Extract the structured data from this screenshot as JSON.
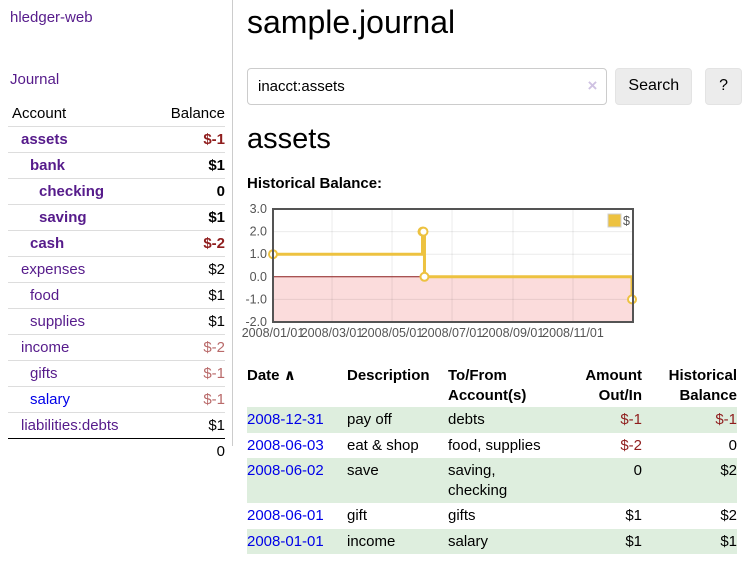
{
  "sidebar": {
    "brand": "hledger-web",
    "journal_label": "Journal",
    "accounts_header": {
      "account": "Account",
      "balance": "Balance"
    },
    "accounts": [
      {
        "name": "assets",
        "depth": 1,
        "bold": true,
        "balance": "$-1",
        "balance_class": "neg-strong",
        "link_color": "purple"
      },
      {
        "name": "bank",
        "depth": 2,
        "bold": true,
        "balance": "$1",
        "balance_class": "pos",
        "link_color": "purple"
      },
      {
        "name": "checking",
        "depth": 3,
        "bold": true,
        "balance": "0",
        "balance_class": "pos",
        "link_color": "purple"
      },
      {
        "name": "saving",
        "depth": 3,
        "bold": true,
        "balance": "$1",
        "balance_class": "pos",
        "link_color": "purple"
      },
      {
        "name": "cash",
        "depth": 2,
        "bold": true,
        "balance": "$-2",
        "balance_class": "neg-strong",
        "link_color": "purple"
      },
      {
        "name": "expenses",
        "depth": 1,
        "bold": false,
        "balance": "$2",
        "balance_class": "pos",
        "link_color": "purple"
      },
      {
        "name": "food",
        "depth": 2,
        "bold": false,
        "balance": "$1",
        "balance_class": "pos",
        "link_color": "purple"
      },
      {
        "name": "supplies",
        "depth": 2,
        "bold": false,
        "balance": "$1",
        "balance_class": "pos",
        "link_color": "purple"
      },
      {
        "name": "income",
        "depth": 1,
        "bold": false,
        "balance": "$-2",
        "balance_class": "neg-soft",
        "link_color": "purple"
      },
      {
        "name": "gifts",
        "depth": 2,
        "bold": false,
        "balance": "$-1",
        "balance_class": "neg-soft",
        "link_color": "purple"
      },
      {
        "name": "salary",
        "depth": 2,
        "bold": false,
        "balance": "$-1",
        "balance_class": "neg-soft",
        "link_color": "blue"
      },
      {
        "name": "liabilities:debts",
        "depth": 1,
        "bold": false,
        "balance": "$1",
        "balance_class": "pos",
        "link_color": "purple"
      }
    ],
    "total": "0"
  },
  "header": {
    "title": "sample.journal"
  },
  "search": {
    "value": "inacct:assets",
    "clear_icon": "×",
    "button_label": "Search",
    "help_label": "?"
  },
  "main": {
    "account_title": "assets"
  },
  "chart_data": {
    "type": "line",
    "step": true,
    "title": "Historical Balance:",
    "series": [
      {
        "name": "$",
        "color": "#edc240",
        "points": [
          [
            "2008-01-01",
            1
          ],
          [
            "2008-06-01",
            2
          ],
          [
            "2008-06-02",
            2
          ],
          [
            "2008-06-03",
            0
          ],
          [
            "2008-12-31",
            -1
          ]
        ]
      }
    ],
    "xlim": [
      "2008-01-01",
      "2009-01-01"
    ],
    "ylim": [
      -2,
      3
    ],
    "y_ticks": [
      3.0,
      2.0,
      1.0,
      0.0,
      -1.0,
      -2.0
    ],
    "x_ticks": [
      "2008/01/01",
      "2008/03/01",
      "2008/05/01",
      "2008/07/01",
      "2008/09/01",
      "2008/11/01"
    ],
    "legend": {
      "label": "$",
      "position": "top-right"
    },
    "grid": true,
    "colors": {
      "line": "#edc240",
      "marker_fill": "#ffffff",
      "negative_region": "#fbdcdc",
      "zero_line": "#8b1a1a",
      "border": "#545454",
      "gridline": "rgba(0,0,0,0.08)",
      "legend_box_border": "#d0d0d0"
    }
  },
  "transactions": {
    "headers": [
      {
        "label": "Date",
        "sort_icon": "∧"
      },
      {
        "label": "Description"
      },
      {
        "label": "To/From Account(s)"
      },
      {
        "label": "Amount Out/In"
      },
      {
        "label": "Historical Balance"
      }
    ],
    "rows": [
      {
        "date": "2008-12-31",
        "description": "pay off",
        "accounts": [
          "debts"
        ],
        "amount": "$-1",
        "amount_negative": true,
        "balance": "$-1",
        "balance_negative": true
      },
      {
        "date": "2008-06-03",
        "description": "eat & shop",
        "accounts": [
          "food, supplies"
        ],
        "amount": "$-2",
        "amount_negative": true,
        "balance": "0",
        "balance_negative": false
      },
      {
        "date": "2008-06-02",
        "description": "save",
        "accounts": [
          "saving,",
          "checking"
        ],
        "amount": "0",
        "amount_negative": false,
        "balance": "$2",
        "balance_negative": false
      },
      {
        "date": "2008-06-01",
        "description": "gift",
        "accounts": [
          "gifts"
        ],
        "amount": "$1",
        "amount_negative": false,
        "balance": "$2",
        "balance_negative": false
      },
      {
        "date": "2008-01-01",
        "description": "income",
        "accounts": [
          "salary"
        ],
        "amount": "$1",
        "amount_negative": false,
        "balance": "$1",
        "balance_negative": false
      }
    ]
  }
}
